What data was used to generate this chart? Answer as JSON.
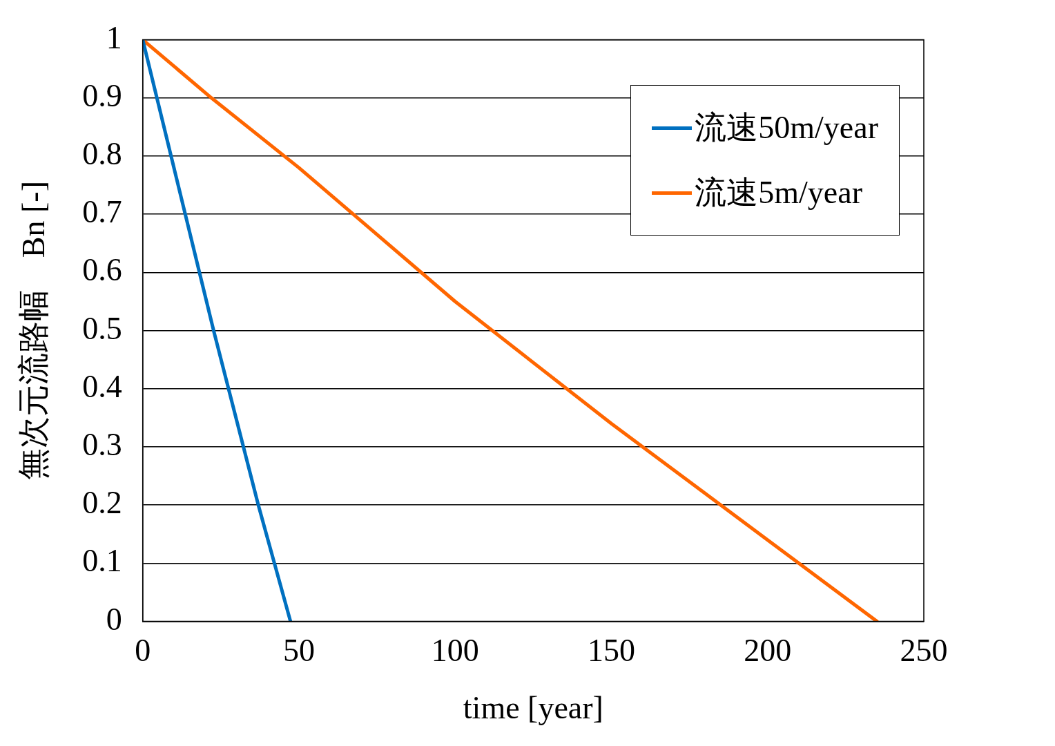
{
  "chart_data": {
    "type": "line",
    "xlabel": "time [year]",
    "ylabel": "無次元流路幅　Bn [-]",
    "xlim": [
      0,
      250
    ],
    "xticks": [
      0,
      50,
      100,
      150,
      200,
      250
    ],
    "ylim": [
      0,
      1
    ],
    "yticks": [
      0,
      0.1,
      0.2,
      0.3,
      0.4,
      0.5,
      0.6,
      0.7,
      0.8,
      0.9,
      1
    ],
    "grid": "y",
    "legend": "top right",
    "marker": "none",
    "line_style": "solid",
    "series": [
      {
        "name": "流速50m/year",
        "color": "#0070c0",
        "x": [
          0,
          22.7,
          37,
          47.3
        ],
        "values": [
          1,
          0.5,
          0.2,
          0
        ]
      },
      {
        "name": "流速5m/year",
        "color": "#ff6600",
        "x": [
          0,
          22,
          50,
          100,
          150,
          200,
          235
        ],
        "values": [
          1,
          0.9,
          0.78,
          0.55,
          0.34,
          0.14,
          0
        ]
      }
    ]
  }
}
